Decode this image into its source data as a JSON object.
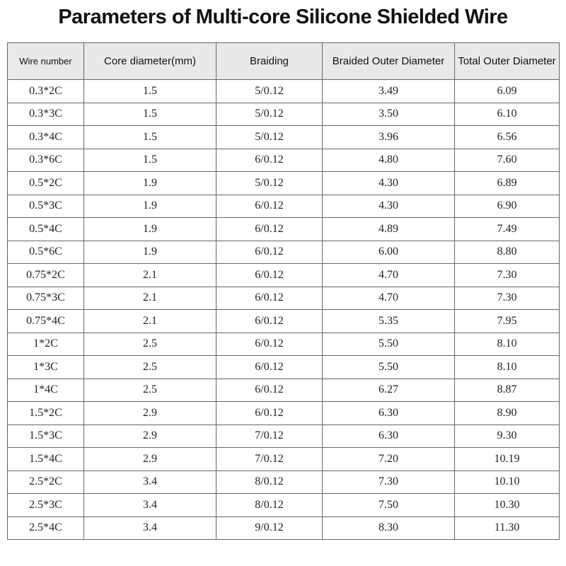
{
  "header": {
    "title": "Parameters of Multi-core Silicone Shielded Wire"
  },
  "table": {
    "columns": [
      "Wire number",
      "Core diameter(mm)",
      "Braiding",
      "Braided Outer Diameter",
      "Total Outer Diameter"
    ],
    "rows": [
      [
        "0.3*2C",
        "1.5",
        "5/0.12",
        "3.49",
        "6.09"
      ],
      [
        "0.3*3C",
        "1.5",
        "5/0.12",
        "3.50",
        "6.10"
      ],
      [
        "0.3*4C",
        "1.5",
        "5/0.12",
        "3.96",
        "6.56"
      ],
      [
        "0.3*6C",
        "1.5",
        "6/0.12",
        "4.80",
        "7.60"
      ],
      [
        "0.5*2C",
        "1.9",
        "5/0.12",
        "4.30",
        "6.89"
      ],
      [
        "0.5*3C",
        "1.9",
        "6/0.12",
        "4.30",
        "6.90"
      ],
      [
        "0.5*4C",
        "1.9",
        "6/0.12",
        "4.89",
        "7.49"
      ],
      [
        "0.5*6C",
        "1.9",
        "6/0.12",
        "6.00",
        "8.80"
      ],
      [
        "0.75*2C",
        "2.1",
        "6/0.12",
        "4.70",
        "7.30"
      ],
      [
        "0.75*3C",
        "2.1",
        "6/0.12",
        "4.70",
        "7.30"
      ],
      [
        "0.75*4C",
        "2.1",
        "6/0.12",
        "5.35",
        "7.95"
      ],
      [
        "1*2C",
        "2.5",
        "6/0.12",
        "5.50",
        "8.10"
      ],
      [
        "1*3C",
        "2.5",
        "6/0.12",
        "5.50",
        "8.10"
      ],
      [
        "1*4C",
        "2.5",
        "6/0.12",
        "6.27",
        "8.87"
      ],
      [
        "1.5*2C",
        "2.9",
        "6/0.12",
        "6.30",
        "8.90"
      ],
      [
        "1.5*3C",
        "2.9",
        "7/0.12",
        "6.30",
        "9.30"
      ],
      [
        "1.5*4C",
        "2.9",
        "7/0.12",
        "7.20",
        "10.19"
      ],
      [
        "2.5*2C",
        "3.4",
        "8/0.12",
        "7.30",
        "10.10"
      ],
      [
        "2.5*3C",
        "3.4",
        "8/0.12",
        "7.50",
        "10.30"
      ],
      [
        "2.5*4C",
        "3.4",
        "9/0.12",
        "8.30",
        "11.30"
      ]
    ]
  }
}
